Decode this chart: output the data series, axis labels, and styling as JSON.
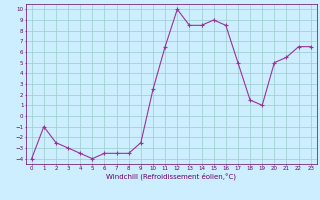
{
  "x": [
    0,
    1,
    2,
    3,
    4,
    5,
    6,
    7,
    8,
    9,
    10,
    11,
    12,
    13,
    14,
    15,
    16,
    17,
    18,
    19,
    20,
    21,
    22,
    23
  ],
  "y": [
    -4,
    -1,
    -2.5,
    -3,
    -3.5,
    -4,
    -3.5,
    -3.5,
    -3.5,
    -2.5,
    2.5,
    6.5,
    10,
    8.5,
    8.5,
    9,
    8.5,
    5,
    1.5,
    1,
    5,
    5.5,
    6.5,
    6.5
  ],
  "xlabel": "Windchill (Refroidissement éolien,°C)",
  "xlim": [
    -0.5,
    23.5
  ],
  "ylim": [
    -4.5,
    10.5
  ],
  "yticks": [
    -4,
    -3,
    -2,
    -1,
    0,
    1,
    2,
    3,
    4,
    5,
    6,
    7,
    8,
    9,
    10
  ],
  "xticks": [
    0,
    1,
    2,
    3,
    4,
    5,
    6,
    7,
    8,
    9,
    10,
    11,
    12,
    13,
    14,
    15,
    16,
    17,
    18,
    19,
    20,
    21,
    22,
    23
  ],
  "line_color": "#993399",
  "marker": "+",
  "bg_color": "#cceeff",
  "grid_color": "#99cccc",
  "axis_label_color": "#660066",
  "tick_label_color": "#660066",
  "spine_color": "#660066"
}
